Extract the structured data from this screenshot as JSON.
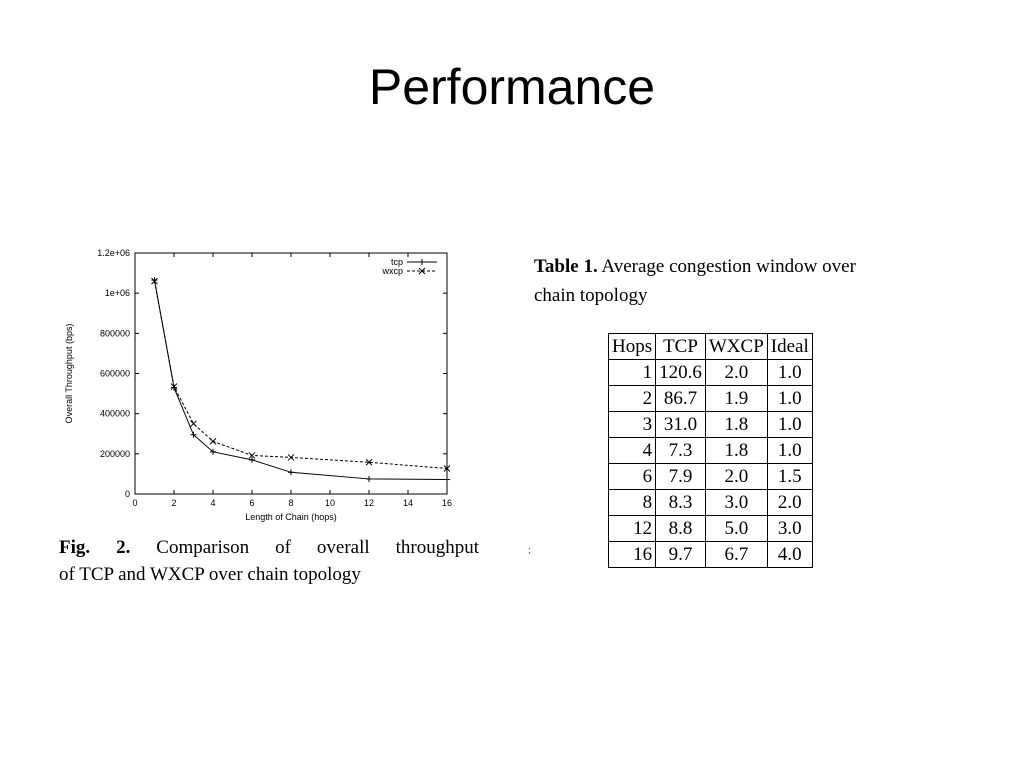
{
  "slide": {
    "title": "Performance"
  },
  "chart_data": {
    "type": "line",
    "x": [
      1,
      2,
      3,
      4,
      6,
      8,
      12,
      16
    ],
    "series": [
      {
        "name": "tcp",
        "values": [
          1065000,
          530000,
          295000,
          210000,
          170000,
          108000,
          75000,
          72000
        ],
        "style": "solid",
        "marker": "+"
      },
      {
        "name": "wxcp",
        "values": [
          1060000,
          535000,
          350000,
          262000,
          192000,
          182000,
          158000,
          127000
        ],
        "style": "dashed",
        "marker": "x"
      }
    ],
    "xlabel": "Length of Chain (hops)",
    "ylabel": "Overall Throughput (bps)",
    "xlim": [
      0,
      16
    ],
    "ylim": [
      0,
      1200000
    ],
    "xticks": [
      0,
      2,
      4,
      6,
      8,
      10,
      12,
      14,
      16
    ],
    "xtick_labels": [
      "0",
      "2",
      "4",
      "6",
      "8",
      "10",
      "12",
      "14",
      "16"
    ],
    "yticks": [
      0,
      200000,
      400000,
      600000,
      800000,
      1000000,
      1200000
    ],
    "ytick_labels": [
      "0",
      "200000",
      "400000",
      "600000",
      "800000",
      "1e+06",
      "1.2e+06"
    ],
    "grid": false,
    "legend_position": "top-right"
  },
  "figure_caption": {
    "label": "Fig. 2.",
    "line1": "Comparison of overall throughput",
    "line2": "of TCP and WXCP over chain topology"
  },
  "table_caption": {
    "label": "Table 1.",
    "line1": "Average congestion window over",
    "line2": "chain topology"
  },
  "stray_mark": ";",
  "table": {
    "headers": [
      "Hops",
      "TCP",
      "WXCP",
      "Ideal"
    ],
    "rows": [
      [
        "1",
        "120.6",
        "2.0",
        "1.0"
      ],
      [
        "2",
        "86.7",
        "1.9",
        "1.0"
      ],
      [
        "3",
        "31.0",
        "1.8",
        "1.0"
      ],
      [
        "4",
        "7.3",
        "1.8",
        "1.0"
      ],
      [
        "6",
        "7.9",
        "2.0",
        "1.5"
      ],
      [
        "8",
        "8.3",
        "3.0",
        "2.0"
      ],
      [
        "12",
        "8.8",
        "5.0",
        "3.0"
      ],
      [
        "16",
        "9.7",
        "6.7",
        "4.0"
      ]
    ]
  }
}
